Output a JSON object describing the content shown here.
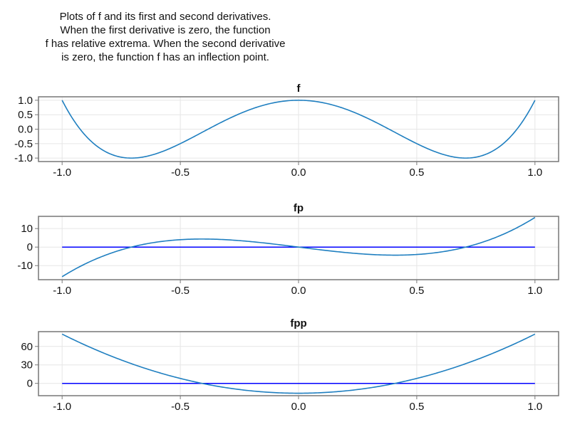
{
  "caption_lines": [
    "Plots of f and its first and second derivatives.",
    "When the first derivative is zero, the function",
    "f has relative extrema. When the second derivative",
    "is zero, the function f has an inflection point."
  ],
  "colors": {
    "curve": "#1f7fc0",
    "zero_line": "#0000ff",
    "frame": "#777777",
    "grid": "#e6e6e6"
  },
  "chart_data": [
    {
      "type": "line",
      "title": "f",
      "xlim": [
        -1.1,
        1.1
      ],
      "ylim": [
        -1.12,
        1.12
      ],
      "xticks": [
        -1.0,
        -0.5,
        0.0,
        0.5,
        1.0
      ],
      "xtick_labels": [
        "-1.0",
        "-0.5",
        "0.0",
        "0.5",
        "1.0"
      ],
      "yticks": [
        1.0,
        0.5,
        0.0,
        -0.5,
        -1.0
      ],
      "ytick_labels": [
        "1.0",
        "0.5",
        "0.0",
        "-0.5",
        "-1.0"
      ],
      "grid": true,
      "function": "8x^4 - 8x^2 + 1",
      "coefficients_descending": [
        8,
        0,
        -8,
        0,
        1
      ],
      "x_range": [
        -1,
        1
      ],
      "zero_line": false
    },
    {
      "type": "line",
      "title": "fp",
      "xlim": [
        -1.1,
        1.1
      ],
      "ylim": [
        -17.6,
        16.6
      ],
      "xticks": [
        -1.0,
        -0.5,
        0.0,
        0.5,
        1.0
      ],
      "xtick_labels": [
        "-1.0",
        "-0.5",
        "0.0",
        "0.5",
        "1.0"
      ],
      "yticks": [
        10,
        0,
        -10
      ],
      "ytick_labels": [
        "10",
        "0",
        "-10"
      ],
      "grid": true,
      "function": "32x^3 - 16x",
      "coefficients_descending": [
        32,
        0,
        -16,
        0
      ],
      "x_range": [
        -1,
        1
      ],
      "zero_line": true
    },
    {
      "type": "line",
      "title": "fpp",
      "xlim": [
        -1.1,
        1.1
      ],
      "ylim": [
        -20,
        84
      ],
      "xticks": [
        -1.0,
        -0.5,
        0.0,
        0.5,
        1.0
      ],
      "xtick_labels": [
        "-1.0",
        "-0.5",
        "0.0",
        "0.5",
        "1.0"
      ],
      "yticks": [
        60,
        30,
        0
      ],
      "ytick_labels": [
        "60",
        "30",
        "0"
      ],
      "grid": true,
      "function": "96x^2 - 16",
      "coefficients_descending": [
        96,
        0,
        -16
      ],
      "x_range": [
        -1,
        1
      ],
      "zero_line": true
    }
  ]
}
